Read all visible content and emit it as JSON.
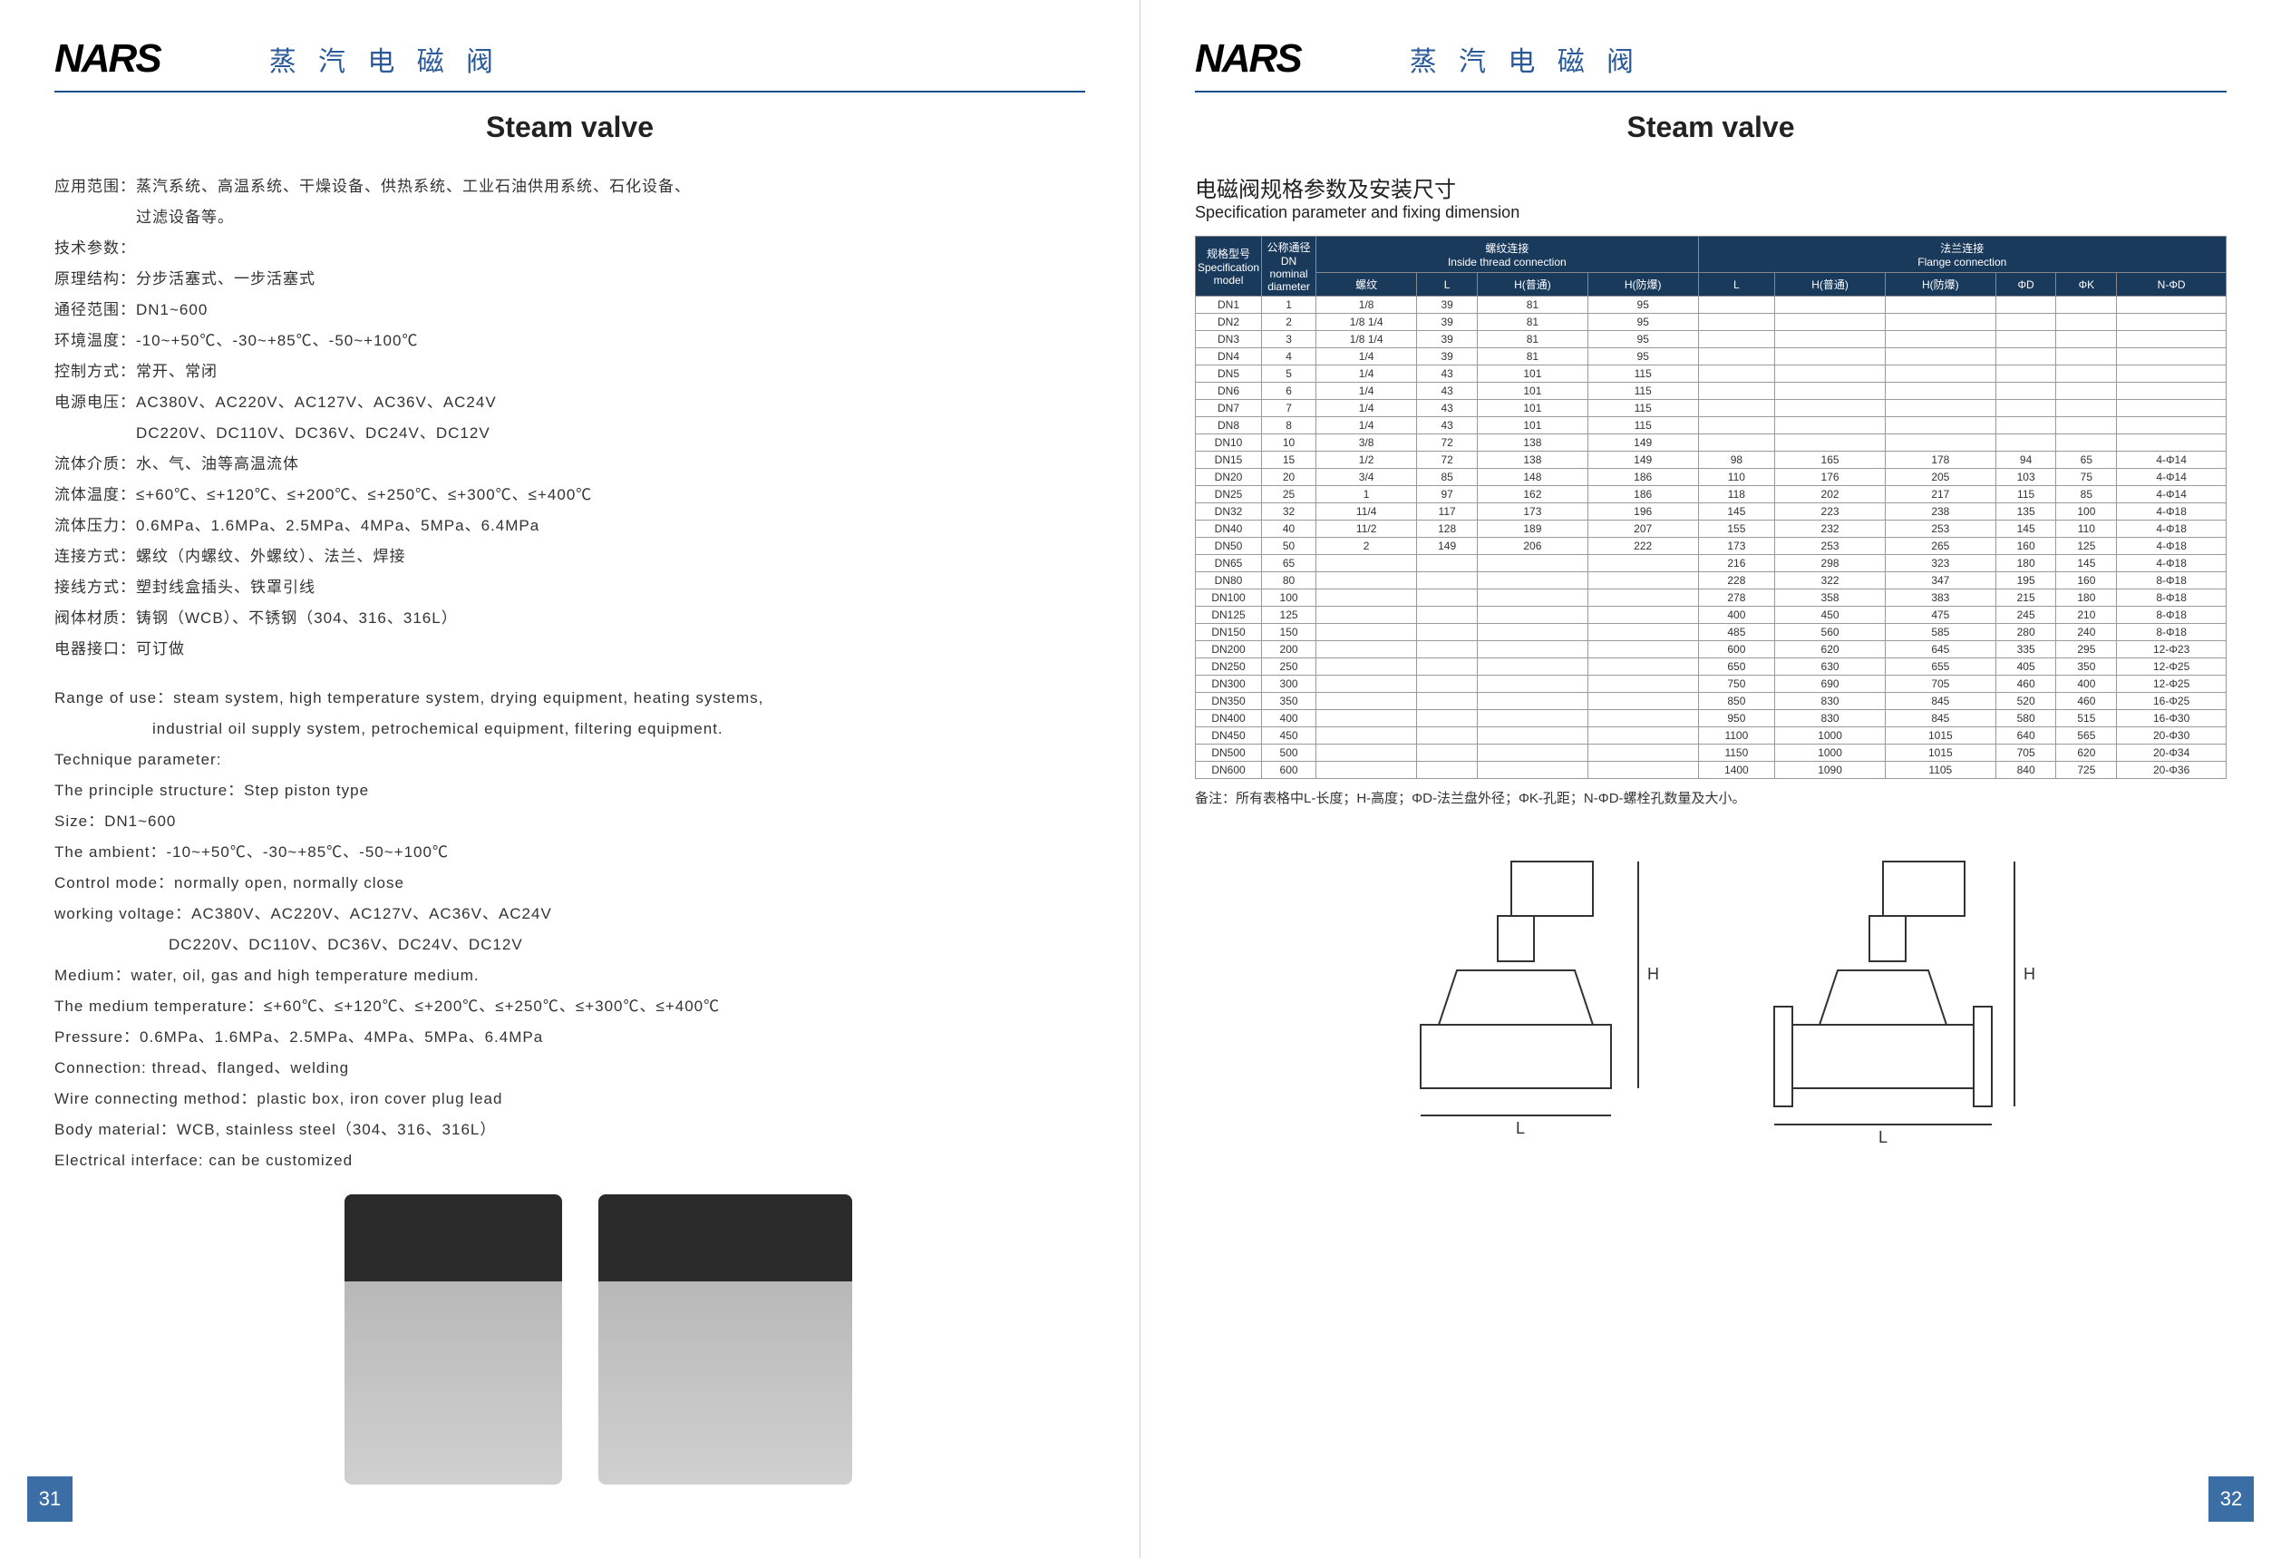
{
  "brand": "NARS",
  "header_title": "蒸 汽 电 磁 阀",
  "main_title": "Steam valve",
  "page_left_num": "31",
  "page_right_num": "32",
  "left_specs_cn": [
    "应用范围：蒸汽系统、高温系统、干燥设备、供热系统、工业石油供用系统、石化设备、",
    "　　　　　过滤设备等。",
    "技术参数：",
    "原理结构：分步活塞式、一步活塞式",
    "通径范围：DN1~600",
    "环境温度：-10~+50℃、-30~+85℃、-50~+100℃",
    "控制方式：常开、常闭",
    "电源电压：AC380V、AC220V、AC127V、AC36V、AC24V",
    "　　　　　DC220V、DC110V、DC36V、DC24V、DC12V",
    "流体介质：水、气、油等高温流体",
    "流体温度：≤+60℃、≤+120℃、≤+200℃、≤+250℃、≤+300℃、≤+400℃",
    "流体压力：0.6MPa、1.6MPa、2.5MPa、4MPa、5MPa、6.4MPa",
    "连接方式：螺纹（内螺纹、外螺纹）、法兰、焊接",
    "接线方式：塑封线盒插头、铁罩引线",
    "阀体材质：铸钢（WCB）、不锈钢（304、316、316L）",
    "电器接口：可订做"
  ],
  "left_specs_en": [
    "Range of use：steam system, high temperature system, drying equipment, heating systems,",
    "　　　　　　industrial oil supply system, petrochemical equipment, filtering equipment.",
    "Technique parameter:",
    "The principle structure：Step piston type",
    "Size：DN1~600",
    "The ambient：-10~+50℃、-30~+85℃、-50~+100℃",
    "Control mode：normally open, normally close",
    "working voltage：AC380V、AC220V、AC127V、AC36V、AC24V",
    "　　　　　　　DC220V、DC110V、DC36V、DC24V、DC12V",
    "Medium：water, oil, gas and high temperature medium.",
    "The medium temperature：≤+60℃、≤+120℃、≤+200℃、≤+250℃、≤+300℃、≤+400℃",
    "Pressure：0.6MPa、1.6MPa、2.5MPa、4MPa、5MPa、6.4MPa",
    "Connection: thread、flanged、welding",
    "Wire connecting method：plastic box, iron cover plug lead",
    "Body material：WCB, stainless steel（304、316、316L）",
    "Electrical interface: can be customized"
  ],
  "right_subtitle_cn": "电磁阀规格参数及安装尺寸",
  "right_subtitle_en": "Specification parameter and fixing dimension",
  "table_headers": {
    "group1": "规格型号\nSpecification\nmodel",
    "group2": "公称通径\nDN\nnominal\ndiameter",
    "group3": "螺纹连接\nInside thread connection",
    "group4": "法兰连接\nFlange connection",
    "sub": [
      "螺纹",
      "L",
      "H(普通)",
      "H(防爆)",
      "L",
      "H(普通)",
      "H(防爆)",
      "ΦD",
      "ΦK",
      "N-ΦD"
    ]
  },
  "table_rows": [
    [
      "DN1",
      "1",
      "1/8",
      "39",
      "81",
      "95",
      "",
      "",
      "",
      "",
      "",
      ""
    ],
    [
      "DN2",
      "2",
      "1/8 1/4",
      "39",
      "81",
      "95",
      "",
      "",
      "",
      "",
      "",
      ""
    ],
    [
      "DN3",
      "3",
      "1/8 1/4",
      "39",
      "81",
      "95",
      "",
      "",
      "",
      "",
      "",
      ""
    ],
    [
      "DN4",
      "4",
      "1/4",
      "39",
      "81",
      "95",
      "",
      "",
      "",
      "",
      "",
      ""
    ],
    [
      "DN5",
      "5",
      "1/4",
      "43",
      "101",
      "115",
      "",
      "",
      "",
      "",
      "",
      ""
    ],
    [
      "DN6",
      "6",
      "1/4",
      "43",
      "101",
      "115",
      "",
      "",
      "",
      "",
      "",
      ""
    ],
    [
      "DN7",
      "7",
      "1/4",
      "43",
      "101",
      "115",
      "",
      "",
      "",
      "",
      "",
      ""
    ],
    [
      "DN8",
      "8",
      "1/4",
      "43",
      "101",
      "115",
      "",
      "",
      "",
      "",
      "",
      ""
    ],
    [
      "DN10",
      "10",
      "3/8",
      "72",
      "138",
      "149",
      "",
      "",
      "",
      "",
      "",
      ""
    ],
    [
      "DN15",
      "15",
      "1/2",
      "72",
      "138",
      "149",
      "98",
      "165",
      "178",
      "94",
      "65",
      "4-Φ14"
    ],
    [
      "DN20",
      "20",
      "3/4",
      "85",
      "148",
      "186",
      "110",
      "176",
      "205",
      "103",
      "75",
      "4-Φ14"
    ],
    [
      "DN25",
      "25",
      "1",
      "97",
      "162",
      "186",
      "118",
      "202",
      "217",
      "115",
      "85",
      "4-Φ14"
    ],
    [
      "DN32",
      "32",
      "11/4",
      "117",
      "173",
      "196",
      "145",
      "223",
      "238",
      "135",
      "100",
      "4-Φ18"
    ],
    [
      "DN40",
      "40",
      "11/2",
      "128",
      "189",
      "207",
      "155",
      "232",
      "253",
      "145",
      "110",
      "4-Φ18"
    ],
    [
      "DN50",
      "50",
      "2",
      "149",
      "206",
      "222",
      "173",
      "253",
      "265",
      "160",
      "125",
      "4-Φ18"
    ],
    [
      "DN65",
      "65",
      "",
      "",
      "",
      "",
      "216",
      "298",
      "323",
      "180",
      "145",
      "4-Φ18"
    ],
    [
      "DN80",
      "80",
      "",
      "",
      "",
      "",
      "228",
      "322",
      "347",
      "195",
      "160",
      "8-Φ18"
    ],
    [
      "DN100",
      "100",
      "",
      "",
      "",
      "",
      "278",
      "358",
      "383",
      "215",
      "180",
      "8-Φ18"
    ],
    [
      "DN125",
      "125",
      "",
      "",
      "",
      "",
      "400",
      "450",
      "475",
      "245",
      "210",
      "8-Φ18"
    ],
    [
      "DN150",
      "150",
      "",
      "",
      "",
      "",
      "485",
      "560",
      "585",
      "280",
      "240",
      "8-Φ18"
    ],
    [
      "DN200",
      "200",
      "",
      "",
      "",
      "",
      "600",
      "620",
      "645",
      "335",
      "295",
      "12-Φ23"
    ],
    [
      "DN250",
      "250",
      "",
      "",
      "",
      "",
      "650",
      "630",
      "655",
      "405",
      "350",
      "12-Φ25"
    ],
    [
      "DN300",
      "300",
      "",
      "",
      "",
      "",
      "750",
      "690",
      "705",
      "460",
      "400",
      "12-Φ25"
    ],
    [
      "DN350",
      "350",
      "",
      "",
      "",
      "",
      "850",
      "830",
      "845",
      "520",
      "460",
      "16-Φ25"
    ],
    [
      "DN400",
      "400",
      "",
      "",
      "",
      "",
      "950",
      "830",
      "845",
      "580",
      "515",
      "16-Φ30"
    ],
    [
      "DN450",
      "450",
      "",
      "",
      "",
      "",
      "1100",
      "1000",
      "1015",
      "640",
      "565",
      "20-Φ30"
    ],
    [
      "DN500",
      "500",
      "",
      "",
      "",
      "",
      "1150",
      "1000",
      "1015",
      "705",
      "620",
      "20-Φ34"
    ],
    [
      "DN600",
      "600",
      "",
      "",
      "",
      "",
      "1400",
      "1090",
      "1105",
      "840",
      "725",
      "20-Φ36"
    ]
  ],
  "footnote": "备注：所有表格中L-长度；H-高度；ΦD-法兰盘外径；ΦK-孔距；N-ΦD-螺栓孔数量及大小。",
  "colors": {
    "header_border": "#1a4d8c",
    "table_header_bg": "#1a3a5c",
    "page_num_bg": "#3a6ea5"
  }
}
